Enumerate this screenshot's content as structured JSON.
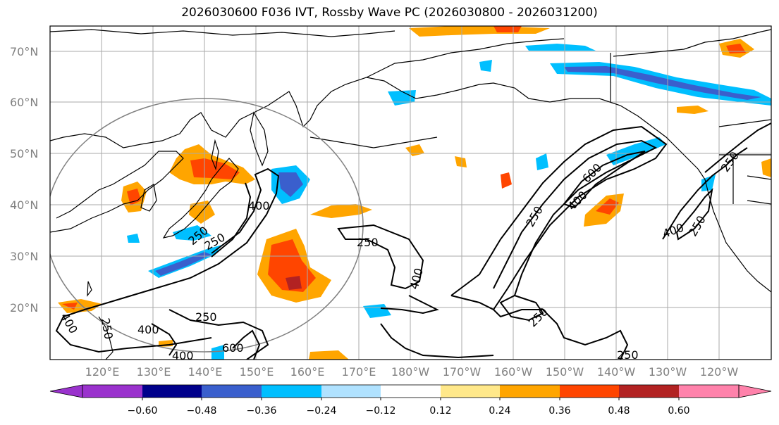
{
  "title": "2026030600 F036 IVT, Rossby Wave PC (2026030800 - 2026031200)",
  "lat_labels": [
    "70°N",
    "60°N",
    "50°N",
    "40°N",
    "30°N",
    "20°N"
  ],
  "lon_labels": [
    "120°E",
    "130°E",
    "140°E",
    "150°E",
    "160°E",
    "170°E",
    "180°W",
    "170°W",
    "160°W",
    "150°W",
    "140°W",
    "130°W",
    "120°W"
  ],
  "colorbar": {
    "ticks": [
      "−0.60",
      "−0.48",
      "−0.36",
      "−0.24",
      "−0.12",
      "0.12",
      "0.24",
      "0.36",
      "0.48",
      "0.60"
    ],
    "colors": [
      "#9a32cd",
      "#00008b",
      "#3a5fcd",
      "#00bfff",
      "#b0e2ff",
      "#ffffff",
      "#ffe88a",
      "#ffa500",
      "#ff4500",
      "#b22222",
      "#ff82ab"
    ]
  },
  "contour_labels": [
    "400",
    "250",
    "250",
    "400",
    "400",
    "250",
    "600",
    "400",
    "250",
    "250",
    "400",
    "250",
    "250",
    "250",
    "400",
    "250",
    "600",
    "400",
    "250"
  ],
  "colors": {
    "land_outline": "#000000",
    "grid": "#aaaaaa",
    "circle": "#808080"
  }
}
